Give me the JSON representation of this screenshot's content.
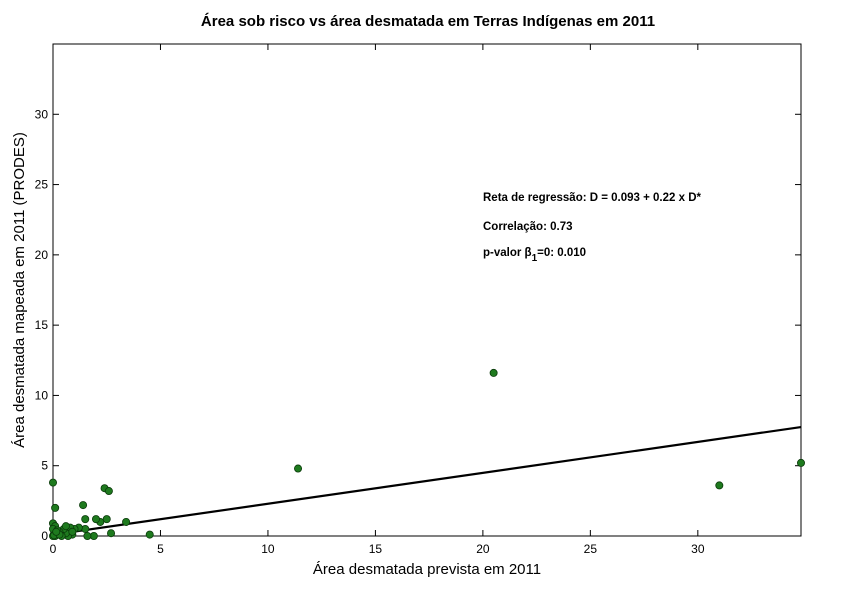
{
  "chart_data": {
    "type": "scatter",
    "title": "Área sob risco vs área desmatada em Terras Indígenas em 2011",
    "xlabel": "Área desmatada prevista em 2011",
    "ylabel": "Área desmatada mapeada em 2011 (PRODES)",
    "xlim": [
      0,
      34.8
    ],
    "ylim": [
      0,
      35
    ],
    "xticks": [
      0,
      5,
      10,
      15,
      20,
      25,
      30
    ],
    "yticks": [
      0,
      5,
      10,
      15,
      20,
      25,
      30
    ],
    "grid": false,
    "regression": {
      "intercept": 0.093,
      "slope": 0.22
    },
    "point_color": "#1e7a1e",
    "points": [
      [
        20.5,
        11.6
      ],
      [
        34.8,
        5.2
      ],
      [
        31.0,
        3.6
      ],
      [
        11.4,
        4.8
      ],
      [
        4.5,
        0.1
      ],
      [
        3.4,
        1.0
      ],
      [
        2.4,
        3.4
      ],
      [
        2.6,
        3.2
      ],
      [
        2.5,
        1.2
      ],
      [
        2.7,
        0.2
      ],
      [
        2.2,
        1.0
      ],
      [
        2.0,
        1.2
      ],
      [
        1.9,
        0.0
      ],
      [
        1.6,
        0.0
      ],
      [
        1.5,
        0.5
      ],
      [
        1.4,
        2.2
      ],
      [
        1.5,
        1.2
      ],
      [
        1.2,
        0.6
      ],
      [
        1.0,
        0.5
      ],
      [
        0.9,
        0.1
      ],
      [
        0.8,
        0.6
      ],
      [
        0.7,
        0.0
      ],
      [
        0.6,
        0.2
      ],
      [
        0.5,
        0.5
      ],
      [
        0.4,
        0.0
      ],
      [
        0.3,
        0.3
      ],
      [
        0.2,
        0.1
      ],
      [
        0.1,
        0.0
      ],
      [
        0.05,
        0.2
      ],
      [
        0.0,
        3.8
      ],
      [
        0.1,
        2.0
      ],
      [
        0.0,
        0.9
      ],
      [
        0.1,
        0.7
      ],
      [
        0.0,
        0.5
      ],
      [
        0.2,
        0.4
      ],
      [
        0.0,
        0.0
      ],
      [
        0.05,
        0.05
      ],
      [
        0.3,
        0.1
      ],
      [
        0.15,
        0.3
      ],
      [
        0.6,
        0.7
      ],
      [
        0.9,
        0.3
      ]
    ]
  },
  "annotations": {
    "regression": "Reta de regressão: D = 0.093 + 0.22 x D*",
    "correlation": "Correlação:  0.73",
    "pvalue_prefix": "p-valor β",
    "pvalue_sub": "1",
    "pvalue_suffix": "=0:  0.010"
  }
}
